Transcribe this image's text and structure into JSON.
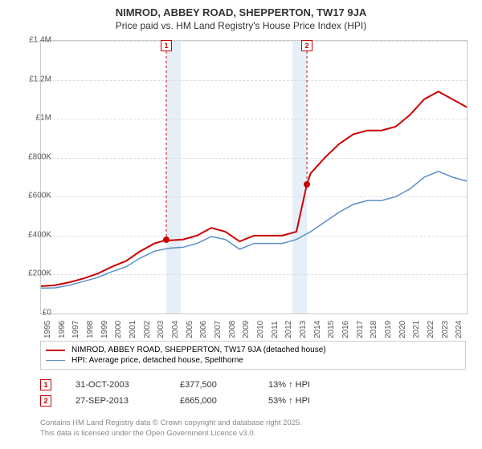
{
  "title": "NIMROD, ABBEY ROAD, SHEPPERTON, TW17 9JA",
  "subtitle": "Price paid vs. HM Land Registry's House Price Index (HPI)",
  "chart": {
    "type": "line",
    "xlim": [
      1995,
      2025
    ],
    "ylim": [
      0,
      1400000
    ],
    "ytick_step": 200000,
    "yticks": [
      "£0",
      "£200K",
      "£400K",
      "£600K",
      "£800K",
      "£1M",
      "£1.2M",
      "£1.4M"
    ],
    "xticks": [
      "1995",
      "1996",
      "1997",
      "1998",
      "1999",
      "2000",
      "2001",
      "2002",
      "2003",
      "2004",
      "2005",
      "2006",
      "2007",
      "2008",
      "2009",
      "2010",
      "2011",
      "2012",
      "2013",
      "2014",
      "2015",
      "2016",
      "2017",
      "2018",
      "2019",
      "2020",
      "2021",
      "2022",
      "2023",
      "2024"
    ],
    "bands": [
      {
        "x_from": 2003.83,
        "x_to": 2004.83,
        "color": "#e6eef8"
      },
      {
        "x_from": 2012.74,
        "x_to": 2013.74,
        "color": "#e6eef8"
      }
    ],
    "background_color": "#ffffff",
    "grid_color": "#dddddd",
    "series": [
      {
        "key": "price_paid",
        "label": "NIMROD, ABBEY ROAD, SHEPPERTON, TW17 9JA (detached house)",
        "color": "#cc0000",
        "line_width": 2,
        "data": [
          [
            1995,
            140000
          ],
          [
            1996,
            145000
          ],
          [
            1997,
            160000
          ],
          [
            1998,
            180000
          ],
          [
            1999,
            205000
          ],
          [
            2000,
            240000
          ],
          [
            2001,
            270000
          ],
          [
            2002,
            320000
          ],
          [
            2003,
            360000
          ],
          [
            2003.83,
            377500
          ],
          [
            2004,
            375000
          ],
          [
            2005,
            380000
          ],
          [
            2006,
            400000
          ],
          [
            2007,
            440000
          ],
          [
            2008,
            420000
          ],
          [
            2009,
            370000
          ],
          [
            2010,
            400000
          ],
          [
            2011,
            400000
          ],
          [
            2012,
            400000
          ],
          [
            2013,
            420000
          ],
          [
            2013.74,
            665000
          ],
          [
            2014,
            720000
          ],
          [
            2015,
            800000
          ],
          [
            2016,
            870000
          ],
          [
            2017,
            920000
          ],
          [
            2018,
            940000
          ],
          [
            2019,
            940000
          ],
          [
            2020,
            960000
          ],
          [
            2021,
            1020000
          ],
          [
            2022,
            1100000
          ],
          [
            2023,
            1140000
          ],
          [
            2024,
            1100000
          ],
          [
            2025,
            1060000
          ]
        ]
      },
      {
        "key": "hpi",
        "label": "HPI: Average price, detached house, Spelthorne",
        "color": "#5a8fc8",
        "line_width": 1.5,
        "data": [
          [
            1995,
            130000
          ],
          [
            1996,
            132000
          ],
          [
            1997,
            145000
          ],
          [
            1998,
            165000
          ],
          [
            1999,
            185000
          ],
          [
            2000,
            215000
          ],
          [
            2001,
            240000
          ],
          [
            2002,
            285000
          ],
          [
            2003,
            320000
          ],
          [
            2004,
            335000
          ],
          [
            2005,
            340000
          ],
          [
            2006,
            360000
          ],
          [
            2007,
            395000
          ],
          [
            2008,
            380000
          ],
          [
            2009,
            330000
          ],
          [
            2010,
            360000
          ],
          [
            2011,
            360000
          ],
          [
            2012,
            360000
          ],
          [
            2013,
            380000
          ],
          [
            2014,
            420000
          ],
          [
            2015,
            470000
          ],
          [
            2016,
            520000
          ],
          [
            2017,
            560000
          ],
          [
            2018,
            580000
          ],
          [
            2019,
            580000
          ],
          [
            2020,
            600000
          ],
          [
            2021,
            640000
          ],
          [
            2022,
            700000
          ],
          [
            2023,
            730000
          ],
          [
            2024,
            700000
          ],
          [
            2025,
            680000
          ]
        ]
      }
    ],
    "markers": [
      {
        "n": "1",
        "x": 2003.83,
        "y": 377500,
        "top_y": 1380000
      },
      {
        "n": "2",
        "x": 2013.74,
        "y": 665000,
        "top_y": 1380000
      }
    ]
  },
  "legend": {
    "items": [
      {
        "color": "#cc0000",
        "width": 2,
        "label": "NIMROD, ABBEY ROAD, SHEPPERTON, TW17 9JA (detached house)"
      },
      {
        "color": "#5a8fc8",
        "width": 1.5,
        "label": "HPI: Average price, detached house, Spelthorne"
      }
    ]
  },
  "events": [
    {
      "n": "1",
      "date": "31-OCT-2003",
      "price": "£377,500",
      "pct": "13% ↑ HPI"
    },
    {
      "n": "2",
      "date": "27-SEP-2013",
      "price": "£665,000",
      "pct": "53% ↑ HPI"
    }
  ],
  "footer": {
    "line1": "Contains HM Land Registry data © Crown copyright and database right 2025.",
    "line2": "This data is licensed under the Open Government Licence v3.0."
  }
}
